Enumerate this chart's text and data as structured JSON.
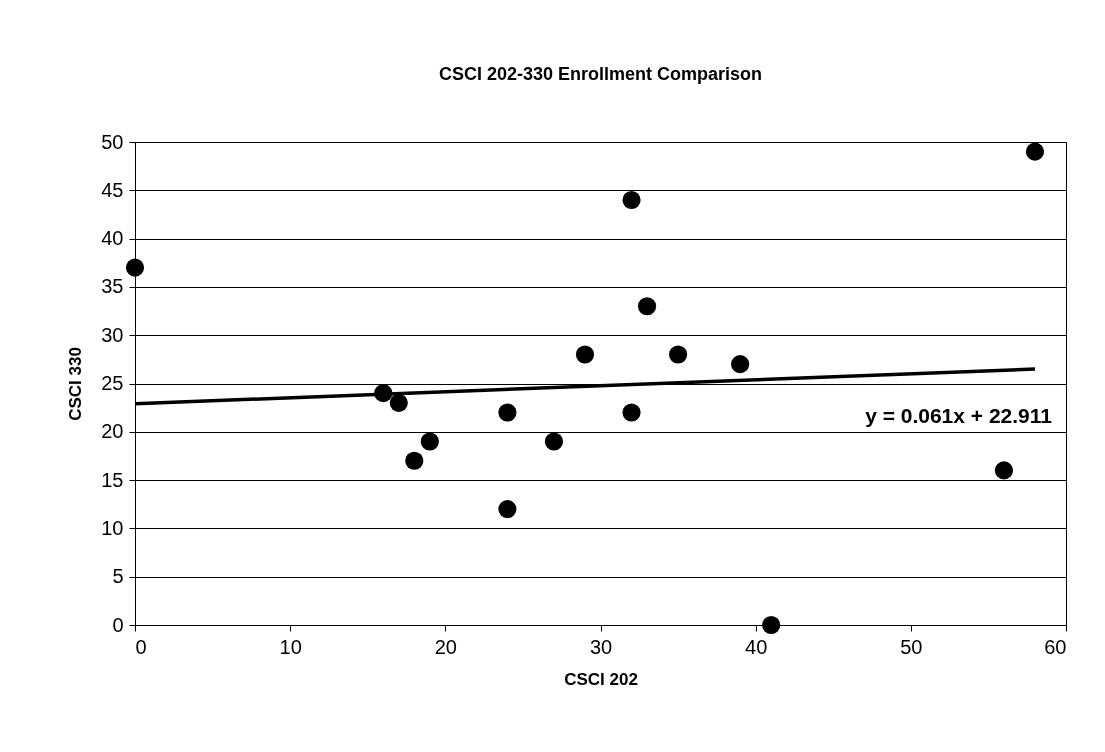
{
  "chart_data": {
    "type": "scatter",
    "title": "CSCI 202-330 Enrollment Comparison",
    "xlabel": "CSCI 202",
    "ylabel": "CSCI 330",
    "x": [
      0,
      16,
      17,
      18,
      19,
      24,
      24,
      27,
      29,
      32,
      32,
      33,
      35,
      39,
      41,
      56,
      58
    ],
    "series": [
      {
        "color": "#000000",
        "marker": "circle",
        "values": [
          37,
          24,
          23,
          17,
          19,
          22,
          12,
          19,
          28,
          44,
          22,
          33,
          28,
          27,
          0,
          16,
          49
        ]
      },
      {
        "type": "line",
        "color": "#000000",
        "line_style": "solid",
        "x": [
          0,
          58
        ],
        "values": [
          22.9,
          26.5
        ]
      }
    ],
    "annotations": [
      "y = 0.061x + 22.911"
    ],
    "xlim": [
      0,
      60
    ],
    "xticks": [
      0,
      10,
      20,
      30,
      40,
      50,
      60
    ],
    "ylim": [
      0,
      50
    ],
    "yticks": [
      0,
      5,
      10,
      15,
      20,
      25,
      30,
      35,
      40,
      45,
      50
    ],
    "grid": "y"
  }
}
